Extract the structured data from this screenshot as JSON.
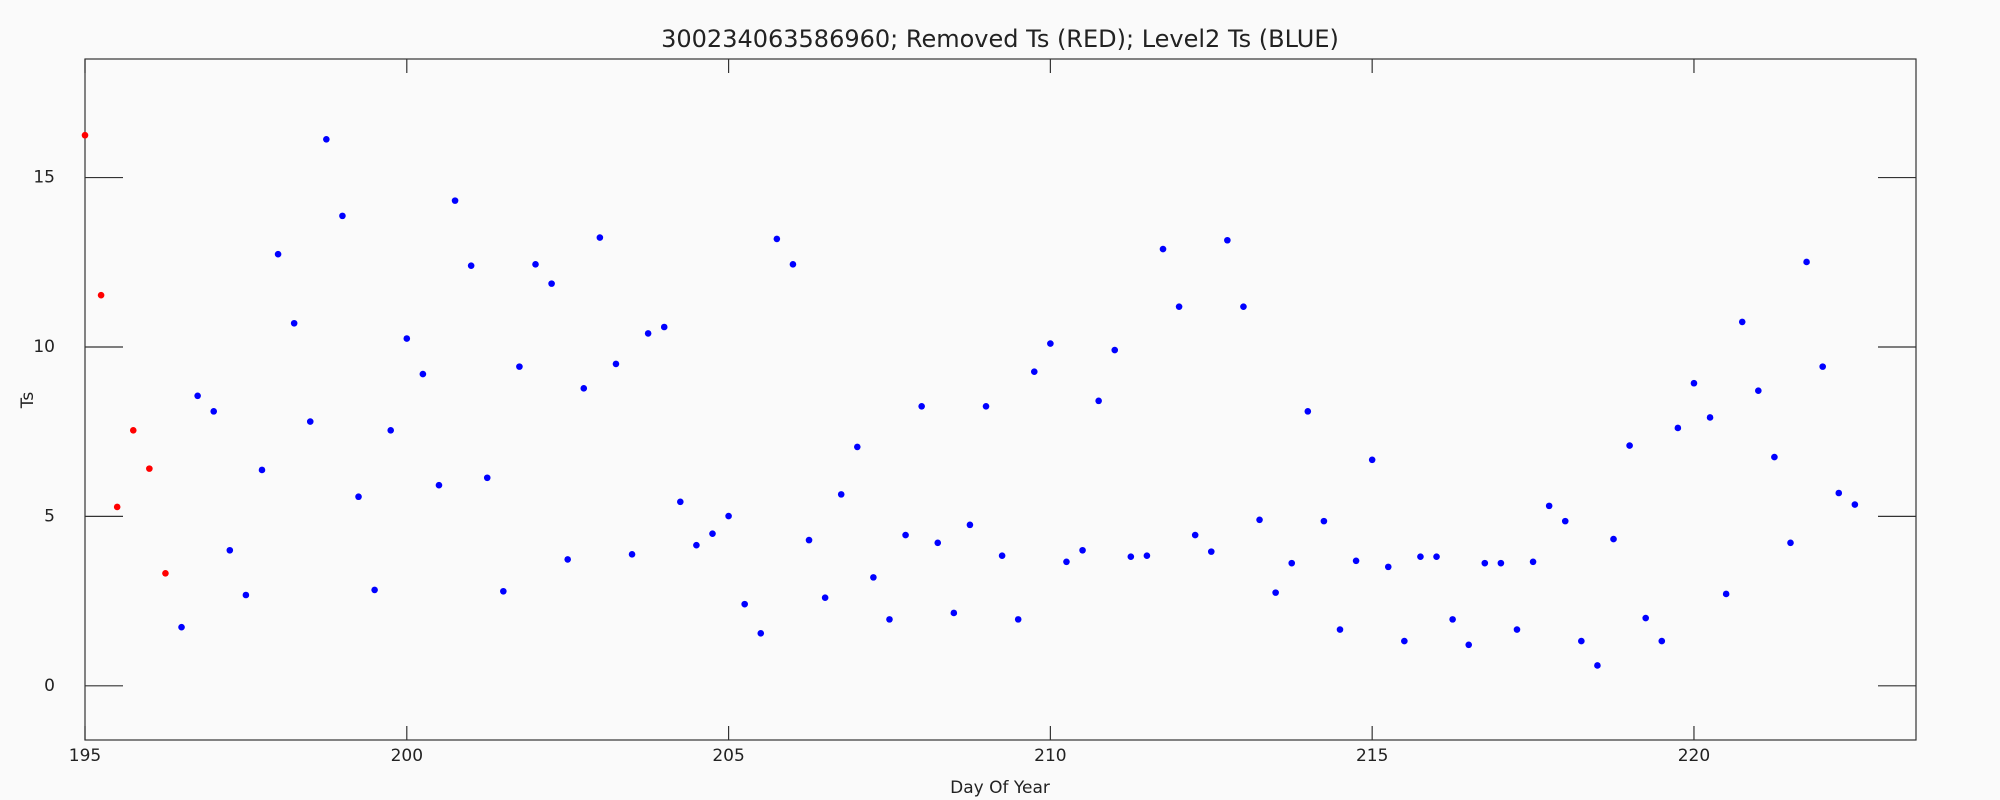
{
  "chart_data": {
    "type": "scatter",
    "title": "300234063586960; Removed Ts (RED); Level2 Ts (BLUE)",
    "x_label": "Day Of Year",
    "y_label": "Ts",
    "xlim": [
      195,
      223.45
    ],
    "ylim": [
      -1.6,
      18.5
    ],
    "xticks": [
      195,
      200,
      205,
      210,
      215,
      220
    ],
    "yticks": [
      0,
      5,
      10,
      15
    ],
    "series": [
      {
        "color": "#ff0000",
        "x": [
          195,
          195.25,
          195.5,
          195.75,
          196,
          196.25
        ],
        "values": [
          16.25,
          11.53,
          5.28,
          7.54,
          6.41,
          3.32
        ]
      },
      {
        "color": "#0000ff",
        "x": [
          196.5,
          196.75,
          197,
          197.25,
          197.5,
          197.75,
          198,
          198.25,
          198.5,
          198.75,
          199,
          199.25,
          199.5,
          199.75,
          200,
          200.25,
          200.5,
          200.75,
          201,
          201.25,
          201.5,
          201.75,
          202,
          202.25,
          202.5,
          202.75,
          203,
          203.25,
          203.5,
          203.75,
          204,
          204.25,
          204.5,
          204.75,
          205,
          205.25,
          205.5,
          205.75,
          206,
          206.25,
          206.5,
          206.75,
          207,
          207.25,
          207.5,
          207.75,
          208,
          208.25,
          208.5,
          208.75,
          209,
          209.25,
          209.5,
          209.75,
          210,
          210.25,
          210.5,
          210.75,
          211,
          211.25,
          211.5,
          211.75,
          212,
          212.25,
          212.5,
          212.75,
          213,
          213.25,
          213.5,
          213.75,
          214,
          214.25,
          214.5,
          214.75,
          215,
          215.25,
          215.5,
          215.75,
          216,
          216.25,
          216.5,
          216.75,
          217,
          217.25,
          217.5,
          217.75,
          218,
          218.25,
          218.5,
          218.75,
          219,
          219.25,
          219.5,
          219.75,
          220,
          220.25,
          220.5,
          220.75,
          221,
          221.25,
          221.5,
          221.75,
          222,
          222.25,
          222.5
        ],
        "values": [
          1.73,
          8.56,
          8.1,
          4.0,
          2.68,
          6.37,
          12.74,
          10.7,
          7.8,
          16.13,
          13.87,
          5.58,
          2.83,
          7.54,
          10.25,
          9.2,
          5.92,
          14.32,
          12.4,
          6.14,
          2.79,
          9.42,
          12.44,
          11.87,
          3.73,
          8.78,
          13.23,
          9.5,
          3.88,
          10.4,
          10.59,
          5.43,
          4.15,
          4.49,
          5.01,
          2.41,
          1.55,
          13.19,
          12.44,
          4.3,
          2.6,
          5.65,
          7.05,
          3.2,
          1.96,
          4.45,
          8.25,
          4.22,
          2.15,
          4.75,
          8.25,
          3.84,
          1.96,
          9.27,
          10.1,
          3.66,
          4.0,
          8.41,
          9.91,
          3.81,
          3.84,
          12.89,
          11.19,
          4.45,
          3.96,
          13.15,
          11.19,
          4.9,
          2.75,
          3.62,
          8.1,
          4.86,
          1.66,
          3.69,
          6.67,
          3.51,
          1.32,
          3.81,
          3.81,
          1.96,
          1.21,
          3.62,
          3.62,
          1.66,
          3.66,
          5.31,
          4.86,
          1.32,
          0.6,
          4.33,
          7.09,
          2.0,
          1.32,
          7.61,
          8.93,
          7.92,
          2.71,
          10.74,
          8.71,
          6.75,
          4.22,
          12.51,
          9.42,
          5.69,
          5.35
        ]
      }
    ]
  }
}
